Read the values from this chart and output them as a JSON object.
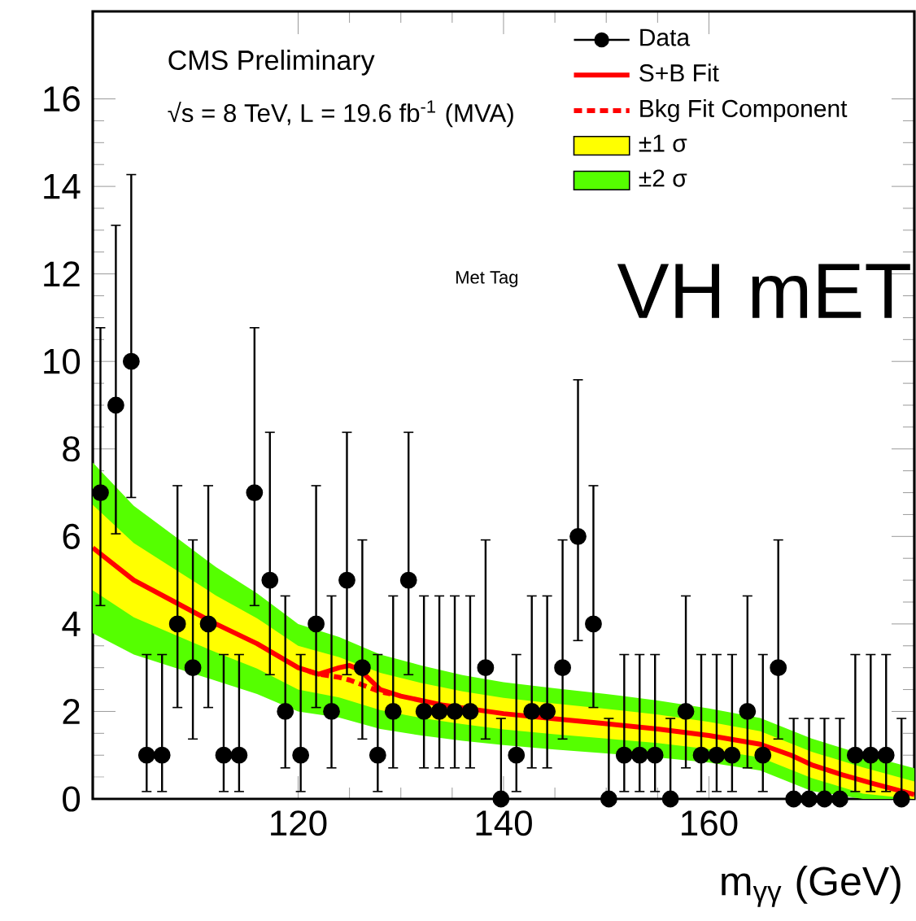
{
  "chart_data": {
    "type": "scatter",
    "xlabel": "m$_{γγ}$ (GeV)",
    "annotations": [
      "CMS Preliminary",
      "√s = 8 TeV, L = 19.6 fb$^{-1}$ (MVA)",
      "Met Tag",
      "VH mET"
    ],
    "xlim": [
      100,
      180
    ],
    "ylim": [
      0,
      18
    ],
    "xticks": [
      120,
      140,
      160
    ],
    "yticks": [
      0,
      2,
      4,
      6,
      8,
      10,
      12,
      14,
      16
    ],
    "legend": "top right",
    "series": [
      {
        "name": "Data",
        "color": "#000000",
        "marker": "circle",
        "x": [
          100.75,
          102.25,
          103.75,
          105.25,
          106.75,
          108.25,
          109.75,
          111.25,
          112.75,
          114.25,
          115.75,
          117.25,
          118.75,
          120.25,
          121.75,
          123.25,
          124.75,
          126.25,
          127.75,
          129.25,
          130.75,
          132.25,
          133.75,
          135.25,
          136.75,
          138.25,
          139.75,
          141.25,
          142.75,
          144.25,
          145.75,
          147.25,
          148.75,
          150.25,
          151.75,
          153.25,
          154.75,
          156.25,
          157.75,
          159.25,
          160.75,
          162.25,
          163.75,
          165.25,
          166.75,
          168.25,
          169.75,
          171.25,
          172.75,
          174.25,
          175.75,
          177.25,
          178.75
        ],
        "values": [
          7,
          9,
          10,
          1,
          1,
          4,
          3,
          4,
          1,
          1,
          7,
          5,
          2,
          1,
          4,
          2,
          5,
          3,
          1,
          2,
          5,
          2,
          2,
          2,
          2,
          3,
          0,
          1,
          2,
          2,
          3,
          6,
          4,
          0,
          1,
          1,
          1,
          0,
          2,
          1,
          1,
          1,
          2,
          1,
          3,
          0,
          0,
          0,
          0,
          1,
          1,
          1,
          0
        ],
        "errors": [
          [
            4.42,
            10.77
          ],
          [
            6.06,
            13.11
          ],
          [
            6.89,
            14.27
          ],
          [
            0.17,
            3.3
          ],
          [
            0.17,
            3.3
          ],
          [
            2.09,
            7.16
          ],
          [
            1.37,
            5.92
          ],
          [
            2.09,
            7.16
          ],
          [
            0.17,
            3.3
          ],
          [
            0.17,
            3.3
          ],
          [
            4.42,
            10.77
          ],
          [
            2.84,
            8.38
          ],
          [
            0.71,
            4.64
          ],
          [
            0.17,
            3.3
          ],
          [
            2.09,
            7.16
          ],
          [
            0.71,
            4.64
          ],
          [
            2.84,
            8.38
          ],
          [
            1.37,
            5.92
          ],
          [
            0.17,
            3.3
          ],
          [
            0.71,
            4.64
          ],
          [
            2.84,
            8.38
          ],
          [
            0.71,
            4.64
          ],
          [
            0.71,
            4.64
          ],
          [
            0.71,
            4.64
          ],
          [
            0.71,
            4.64
          ],
          [
            1.37,
            5.92
          ],
          [
            0,
            1.84
          ],
          [
            0.17,
            3.3
          ],
          [
            0.71,
            4.64
          ],
          [
            0.71,
            4.64
          ],
          [
            1.37,
            5.92
          ],
          [
            3.62,
            9.58
          ],
          [
            2.09,
            7.16
          ],
          [
            0,
            1.84
          ],
          [
            0.17,
            3.3
          ],
          [
            0.17,
            3.3
          ],
          [
            0.17,
            3.3
          ],
          [
            0,
            1.84
          ],
          [
            0.71,
            4.64
          ],
          [
            0.17,
            3.3
          ],
          [
            0.17,
            3.3
          ],
          [
            0.17,
            3.3
          ],
          [
            0.71,
            4.64
          ],
          [
            0.17,
            3.3
          ],
          [
            1.37,
            5.92
          ],
          [
            0,
            1.84
          ],
          [
            0,
            1.84
          ],
          [
            0,
            1.84
          ],
          [
            0,
            1.84
          ],
          [
            0.17,
            3.3
          ],
          [
            0.17,
            3.3
          ],
          [
            0.17,
            3.3
          ],
          [
            0,
            1.84
          ]
        ]
      },
      {
        "name": "S+B Fit",
        "type": "line",
        "color": "#ff0000",
        "line_style": "solid",
        "x": [
          100,
          104,
          108,
          112,
          116,
          120,
          122,
          124,
          125,
          126,
          128,
          130,
          134,
          140,
          145,
          150,
          155,
          160,
          165,
          168,
          170,
          173,
          176,
          180
        ],
        "values": [
          5.74,
          5.0,
          4.5,
          4.0,
          3.55,
          3.0,
          2.85,
          3.0,
          3.05,
          2.95,
          2.5,
          2.35,
          2.15,
          1.95,
          1.83,
          1.72,
          1.6,
          1.45,
          1.25,
          1.0,
          0.78,
          0.55,
          0.35,
          0.1
        ]
      },
      {
        "name": "Bkg Fit Component",
        "type": "line",
        "color": "#ff0000",
        "line_style": "dashed",
        "x": [
          121,
          122,
          124,
          125,
          126,
          128,
          129
        ],
        "values": [
          2.92,
          2.85,
          2.78,
          2.72,
          2.63,
          2.45,
          2.4
        ]
      },
      {
        "name": "±1 σ",
        "type": "line",
        "color": "#ffff00",
        "x": [
          100,
          104,
          108,
          112,
          116,
          120,
          124,
          128,
          132,
          136,
          140,
          145,
          150,
          155,
          160,
          165,
          170,
          175,
          180
        ],
        "values": [
          null,
          null,
          null,
          null,
          null,
          null,
          null,
          null,
          null,
          null,
          null,
          null,
          null,
          null,
          null,
          null,
          null,
          null,
          null
        ],
        "lower": [
          4.77,
          4.15,
          3.75,
          3.35,
          2.98,
          2.5,
          2.32,
          2.03,
          1.85,
          1.71,
          1.59,
          1.48,
          1.38,
          1.28,
          1.14,
          0.95,
          0.48,
          0.12,
          0
        ],
        "upper": [
          6.72,
          5.85,
          5.25,
          4.65,
          4.13,
          3.5,
          3.24,
          2.88,
          2.65,
          2.46,
          2.31,
          2.18,
          2.06,
          1.93,
          1.76,
          1.55,
          1.08,
          0.72,
          0.4
        ]
      },
      {
        "name": "±2 σ",
        "type": "line",
        "color": "#55ff00",
        "x": [
          100,
          104,
          108,
          112,
          116,
          120,
          124,
          128,
          132,
          136,
          140,
          145,
          150,
          155,
          160,
          165,
          170,
          175,
          180
        ],
        "values": [
          null,
          null,
          null,
          null,
          null,
          null,
          null,
          null,
          null,
          null,
          null,
          null,
          null,
          null,
          null,
          null,
          null,
          null,
          null
        ],
        "lower": [
          3.79,
          3.3,
          3.0,
          2.7,
          2.4,
          2.0,
          1.86,
          1.6,
          1.45,
          1.33,
          1.23,
          1.13,
          1.04,
          0.95,
          0.83,
          0.65,
          0.18,
          0,
          0
        ],
        "upper": [
          7.69,
          6.7,
          6.0,
          5.3,
          4.7,
          4.0,
          3.7,
          3.3,
          3.05,
          2.83,
          2.67,
          2.53,
          2.4,
          2.25,
          2.07,
          1.85,
          1.38,
          1.02,
          0.7
        ]
      }
    ]
  }
}
